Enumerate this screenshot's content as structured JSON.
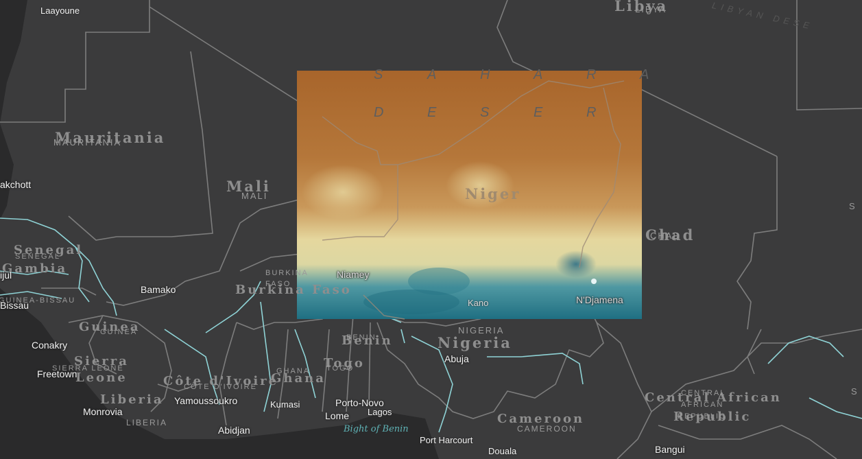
{
  "map": {
    "basemap": "dark-gray-canvas",
    "overlay": {
      "description_colors": {
        "dry": "#a9692d",
        "mid": "#e6dca0",
        "wet": "#2f7f8f"
      }
    }
  },
  "countries": {
    "libya": "Libya",
    "libya_sub": "LIBYA",
    "mauritania": "Mauritania",
    "mauritania_sub": "MAURITANIA",
    "mali": "Mali",
    "mali_sub": "MALI",
    "niger": "Niger",
    "chad": "Chad",
    "chad_sub": "CHAD",
    "senegal": "Senegal",
    "senegal_sub": "SENEGAL",
    "gambia": "Gambia",
    "guinea_bissau_sub": "GUINEA-BISSAU",
    "burkina": "Burkina Faso",
    "burkina_sub": "BURKINA FASO",
    "guinea": "Guinea",
    "guinea_sub": "GUINEA",
    "sierra": "Sierra",
    "leone": "Leone",
    "sierra_sub": "SIERRA LEONE",
    "cote": "Côte d'Ivoire",
    "cote_sub": "CÔTE D'IVOIRE",
    "liberia": "Liberia",
    "liberia_sub": "LIBERIA",
    "ghana": "Ghana",
    "ghana_sub": "GHANA",
    "togo": "Togo",
    "togo_sub": "TOGO",
    "benin": "Benin",
    "benin_sub": "BENIN",
    "nigeria": "Nigeria",
    "nigeria_sub": "NIGERIA",
    "cameroon": "Cameroon",
    "cameroon_sub": "CAMEROON",
    "car_line1": "Central African",
    "car_line2": "Republic",
    "car_sub1": "CENTRAL",
    "car_sub2": "AFRICAN",
    "car_sub3": "REPUBLIC",
    "sudan_partial": "S",
    "libyan_desert_partial": "LIBYAN DESE"
  },
  "cities": {
    "laayoune": "Laayoune",
    "nouakchott": "akchott",
    "banjul": "ijul",
    "bissau": "Bissau",
    "bamako": "Bamako",
    "conakry": "Conakry",
    "freetown": "Freetown",
    "monrovia": "Monrovia",
    "yamoussoukro": "Yamoussoukro",
    "abidjan": "Abidjan",
    "kumasi": "Kumasi",
    "lome": "Lome",
    "porto_novo": "Porto-Novo",
    "lagos": "Lagos",
    "abuja": "Abuja",
    "port_harcourt": "Port Harcourt",
    "douala": "Douala",
    "bangui": "Bangui",
    "niamey": "Niamey",
    "kano": "Kano",
    "ndjamena": "N'Djamena"
  },
  "desert": {
    "line1": [
      "S",
      "A",
      "H",
      "A",
      "R",
      "A"
    ],
    "line2": [
      "D",
      "E",
      "S",
      "E",
      "R"
    ]
  },
  "water": {
    "bight_of_benin": "Bight of Benin"
  }
}
